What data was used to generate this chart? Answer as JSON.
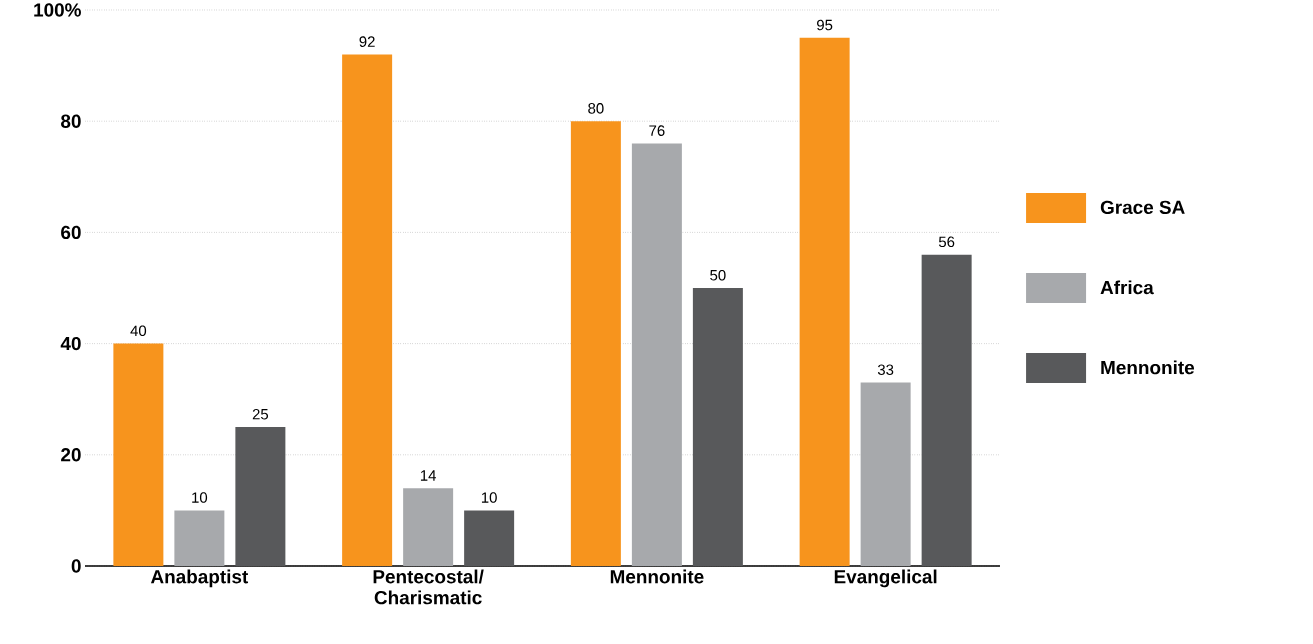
{
  "chart_data": {
    "type": "bar",
    "categories": [
      "Anabaptist",
      "Pentecostal/ Charismatic",
      "Mennonite",
      "Evangelical"
    ],
    "series": [
      {
        "name": "Grace SA",
        "color": "#f7941d",
        "values": [
          40,
          92,
          80,
          95
        ]
      },
      {
        "name": "Africa",
        "color": "#a7a9ac",
        "values": [
          10,
          14,
          76,
          33
        ]
      },
      {
        "name": "Mennonite",
        "color": "#58595b",
        "values": [
          25,
          10,
          50,
          56
        ]
      }
    ],
    "ylim": [
      0,
      100
    ],
    "yticks": [
      0,
      20,
      40,
      60,
      80,
      {
        "value": 100,
        "label": "100%"
      }
    ],
    "grid": "y",
    "legend": "right",
    "data_labels": true
  }
}
